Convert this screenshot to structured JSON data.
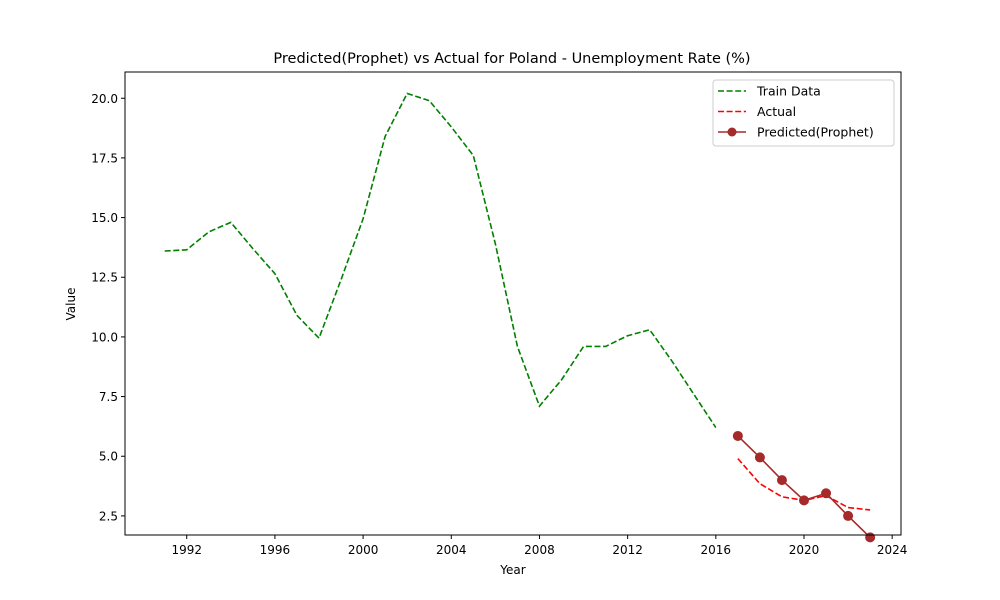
{
  "chart_data": {
    "type": "line",
    "title": "Predicted(Prophet) vs Actual for Poland - Unemployment Rate (%)",
    "xlabel": "Year",
    "ylabel": "Value",
    "xlim": [
      1989.2,
      2024.4
    ],
    "ylim": [
      1.7,
      21.1
    ],
    "xticks": [
      1992,
      1996,
      2000,
      2004,
      2008,
      2012,
      2016,
      2020,
      2024
    ],
    "yticks": [
      2.5,
      5.0,
      7.5,
      10.0,
      12.5,
      15.0,
      17.5,
      20.0
    ],
    "ytick_labels": [
      "2.5",
      "5.0",
      "7.5",
      "10.0",
      "12.5",
      "15.0",
      "17.5",
      "20.0"
    ],
    "grid": false,
    "legend_position": "top-right",
    "series": [
      {
        "name": "Train Data",
        "color": "#008000",
        "style": "dashed",
        "marker": "none",
        "x": [
          1991,
          1992,
          1993,
          1994,
          1995,
          1996,
          1997,
          1998,
          1999,
          2000,
          2001,
          2002,
          2003,
          2004,
          2005,
          2006,
          2007,
          2008,
          2009,
          2010,
          2011,
          2012,
          2013,
          2014,
          2015,
          2016
        ],
        "y": [
          13.6,
          13.65,
          14.4,
          14.8,
          13.7,
          12.65,
          10.9,
          9.95,
          12.4,
          14.95,
          18.4,
          20.2,
          19.9,
          18.8,
          17.6,
          13.9,
          9.6,
          7.1,
          8.2,
          9.6,
          9.6,
          10.05,
          10.3,
          9.0,
          7.6,
          6.2
        ]
      },
      {
        "name": "Actual",
        "color": "#ff0000",
        "style": "dashed",
        "marker": "none",
        "x": [
          2017,
          2018,
          2019,
          2020,
          2021,
          2022,
          2023
        ],
        "y": [
          4.9,
          3.85,
          3.3,
          3.15,
          3.35,
          2.85,
          2.75
        ]
      },
      {
        "name": "Predicted(Prophet)",
        "color": "#a52a2a",
        "style": "solid",
        "marker": "circle",
        "x": [
          2017,
          2018,
          2019,
          2020,
          2021,
          2022,
          2023
        ],
        "y": [
          5.85,
          4.95,
          4.0,
          3.15,
          3.45,
          2.5,
          1.6
        ]
      }
    ]
  }
}
